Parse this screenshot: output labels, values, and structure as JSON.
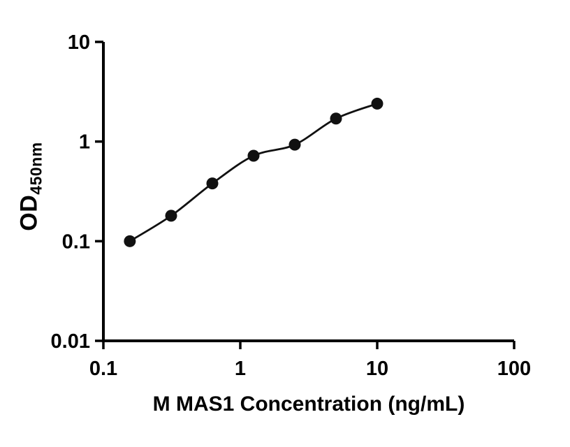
{
  "chart_data": {
    "type": "scatter",
    "title": "",
    "xlabel": "M MAS1 Concentration (ng/mL)",
    "ylabel_main": "OD",
    "ylabel_sub": "450nm",
    "x_scale": "log",
    "y_scale": "log",
    "xlim": [
      0.1,
      100
    ],
    "ylim": [
      0.01,
      10
    ],
    "grid": false,
    "legend": "none",
    "x_ticks": [
      {
        "value": 0.1,
        "label": "0.1"
      },
      {
        "value": 1,
        "label": "1"
      },
      {
        "value": 10,
        "label": "10"
      },
      {
        "value": 100,
        "label": "100"
      }
    ],
    "y_ticks": [
      {
        "value": 0.01,
        "label": "0.01"
      },
      {
        "value": 0.1,
        "label": "0.1"
      },
      {
        "value": 1,
        "label": "1"
      },
      {
        "value": 10,
        "label": "10"
      }
    ],
    "points": [
      {
        "x": 0.156,
        "y": 0.1
      },
      {
        "x": 0.3125,
        "y": 0.18
      },
      {
        "x": 0.625,
        "y": 0.38
      },
      {
        "x": 1.25,
        "y": 0.72
      },
      {
        "x": 2.5,
        "y": 0.93
      },
      {
        "x": 5.0,
        "y": 1.7
      },
      {
        "x": 10.0,
        "y": 2.4
      }
    ],
    "curve_through_points": true,
    "marker": "filled-circle",
    "colors": {
      "point": "#111111",
      "line": "#111111",
      "axis": "#000000",
      "text": "#000000",
      "background": "#ffffff"
    }
  }
}
